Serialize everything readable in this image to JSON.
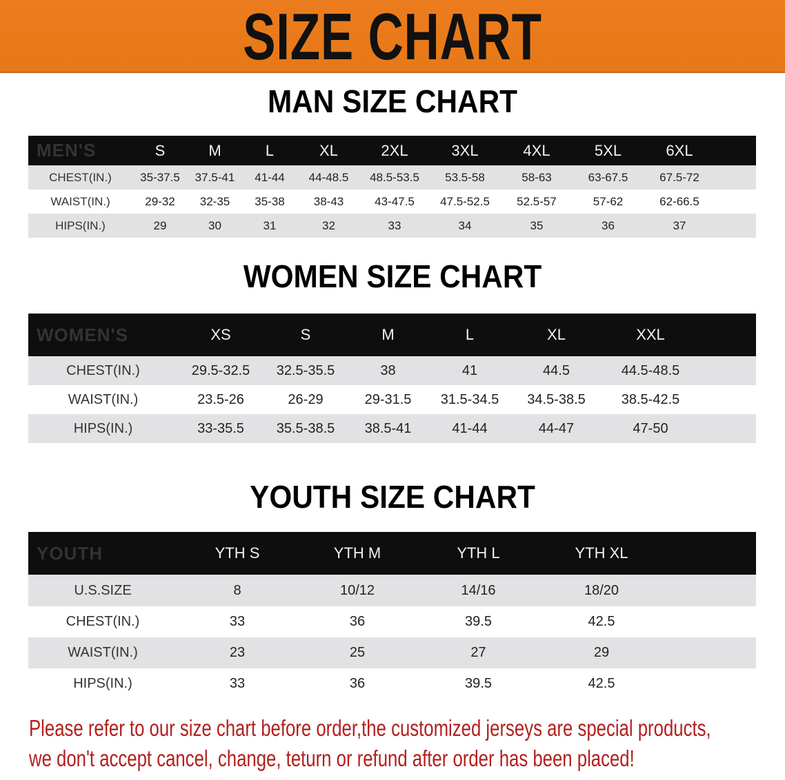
{
  "banner": {
    "title": "SIZE CHART",
    "color": "#e97a1b"
  },
  "men": {
    "title": "MAN SIZE CHART",
    "header": [
      "MEN'S",
      "S",
      "M",
      "L",
      "XL",
      "2XL",
      "3XL",
      "4XL",
      "5XL",
      "6XL"
    ],
    "rows": [
      [
        "CHEST(IN.)",
        "35-37.5",
        "37.5-41",
        "41-44",
        "44-48.5",
        "48.5-53.5",
        "53.5-58",
        "58-63",
        "63-67.5",
        "67.5-72"
      ],
      [
        "WAIST(IN.)",
        "29-32",
        "32-35",
        "35-38",
        "38-43",
        "43-47.5",
        "47.5-52.5",
        "52.5-57",
        "57-62",
        "62-66.5"
      ],
      [
        "HIPS(IN.)",
        "29",
        "30",
        "31",
        "32",
        "33",
        "34",
        "35",
        "36",
        "37"
      ]
    ]
  },
  "women": {
    "title": "WOMEN SIZE CHART",
    "header": [
      "WOMEN'S",
      "XS",
      "S",
      "M",
      "L",
      "XL",
      "XXL"
    ],
    "rows": [
      [
        "CHEST(IN.)",
        "29.5-32.5",
        "32.5-35.5",
        "38",
        "41",
        "44.5",
        "44.5-48.5"
      ],
      [
        "WAIST(IN.)",
        "23.5-26",
        "26-29",
        "29-31.5",
        "31.5-34.5",
        "34.5-38.5",
        "38.5-42.5"
      ],
      [
        "HIPS(IN.)",
        "33-35.5",
        "35.5-38.5",
        "38.5-41",
        "41-44",
        "44-47",
        "47-50"
      ]
    ]
  },
  "youth": {
    "title": "YOUTH SIZE CHART",
    "header": [
      "YOUTH",
      "YTH S",
      "YTH M",
      "YTH L",
      "YTH XL"
    ],
    "rows": [
      [
        "U.S.SIZE",
        "8",
        "10/12",
        "14/16",
        "18/20"
      ],
      [
        "CHEST(IN.)",
        "33",
        "36",
        "39.5",
        "42.5"
      ],
      [
        "WAIST(IN.)",
        "23",
        "25",
        "27",
        "29"
      ],
      [
        "HIPS(IN.)",
        "33",
        "36",
        "39.5",
        "42.5"
      ]
    ]
  },
  "notice": {
    "line1": "Please refer to our size chart before order,the customized jerseys are special products,",
    "line2": "we don't accept cancel, change, teturn or refund after order has been placed!",
    "color": "#b3201f"
  }
}
